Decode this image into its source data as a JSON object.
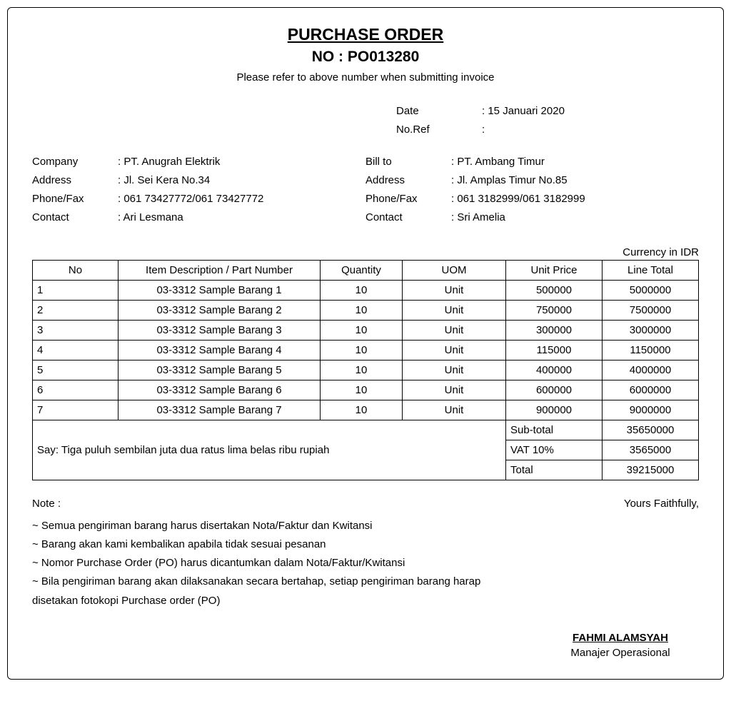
{
  "header": {
    "title": "PURCHASE ORDER",
    "no_label": "NO : ",
    "no_value": "PO013280",
    "subhead": "Please refer to above number when submitting invoice"
  },
  "meta": {
    "date_label": "Date",
    "date_value": "15 Januari 2020",
    "ref_label": "No.Ref",
    "ref_value": ""
  },
  "company": {
    "labels": {
      "company": "Company",
      "address": "Address",
      "phone": "Phone/Fax",
      "contact": "Contact"
    },
    "values": {
      "company": "PT. Anugrah Elektrik",
      "address": "Jl. Sei Kera No.34",
      "phone": "061 73427772/061 73427772",
      "contact": "Ari Lesmana"
    }
  },
  "billto": {
    "labels": {
      "company": "Bill to",
      "address": "Address",
      "phone": "Phone/Fax",
      "contact": "Contact"
    },
    "values": {
      "company": "PT. Ambang Timur",
      "address": "Jl. Amplas Timur No.85",
      "phone": "061 3182999/061 3182999",
      "contact": "Sri Amelia"
    }
  },
  "table": {
    "currency_note": "Currency in IDR",
    "headers": {
      "no": "No",
      "desc": "Item Description / Part Number",
      "qty": "Quantity",
      "uom": "UOM",
      "up": "Unit Price",
      "lt": "Line Total"
    },
    "rows": [
      {
        "no": "1",
        "desc": "03-3312 Sample Barang 1",
        "qty": "10",
        "uom": "Unit",
        "up": "500000",
        "lt": "5000000"
      },
      {
        "no": "2",
        "desc": "03-3312 Sample Barang 2",
        "qty": "10",
        "uom": "Unit",
        "up": "750000",
        "lt": "7500000"
      },
      {
        "no": "3",
        "desc": "03-3312 Sample Barang 3",
        "qty": "10",
        "uom": "Unit",
        "up": "300000",
        "lt": "3000000"
      },
      {
        "no": "4",
        "desc": "03-3312 Sample Barang 4",
        "qty": "10",
        "uom": "Unit",
        "up": "115000",
        "lt": "1150000"
      },
      {
        "no": "5",
        "desc": "03-3312 Sample Barang 5",
        "qty": "10",
        "uom": "Unit",
        "up": "400000",
        "lt": "4000000"
      },
      {
        "no": "6",
        "desc": "03-3312 Sample Barang 6",
        "qty": "10",
        "uom": "Unit",
        "up": "600000",
        "lt": "6000000"
      },
      {
        "no": "7",
        "desc": "03-3312 Sample Barang 7",
        "qty": "10",
        "uom": "Unit",
        "up": "900000",
        "lt": "9000000"
      }
    ],
    "say_label": "Say: ",
    "say_value": "Tiga puluh sembilan juta dua ratus lima belas ribu rupiah",
    "summary": {
      "subtotal_label": "Sub-total",
      "subtotal_value": "35650000",
      "vat_label": "VAT 10%",
      "vat_value": "3565000",
      "total_label": "Total",
      "total_value": "39215000"
    }
  },
  "notes": {
    "heading": "Note :",
    "closing": "Yours Faithfully,",
    "items": [
      "~ Semua pengiriman barang harus disertakan Nota/Faktur dan Kwitansi",
      "~ Barang akan kami kembalikan apabila tidak sesuai pesanan",
      "~ Nomor Purchase Order (PO) harus dicantumkan dalam Nota/Faktur/Kwitansi",
      "~ Bila pengiriman barang akan dilaksanakan secara bertahap, setiap pengiriman barang harap disetakan fotokopi Purchase order (PO)"
    ]
  },
  "signature": {
    "name": "FAHMI ALAMSYAH",
    "title": "Manajer Operasional"
  }
}
